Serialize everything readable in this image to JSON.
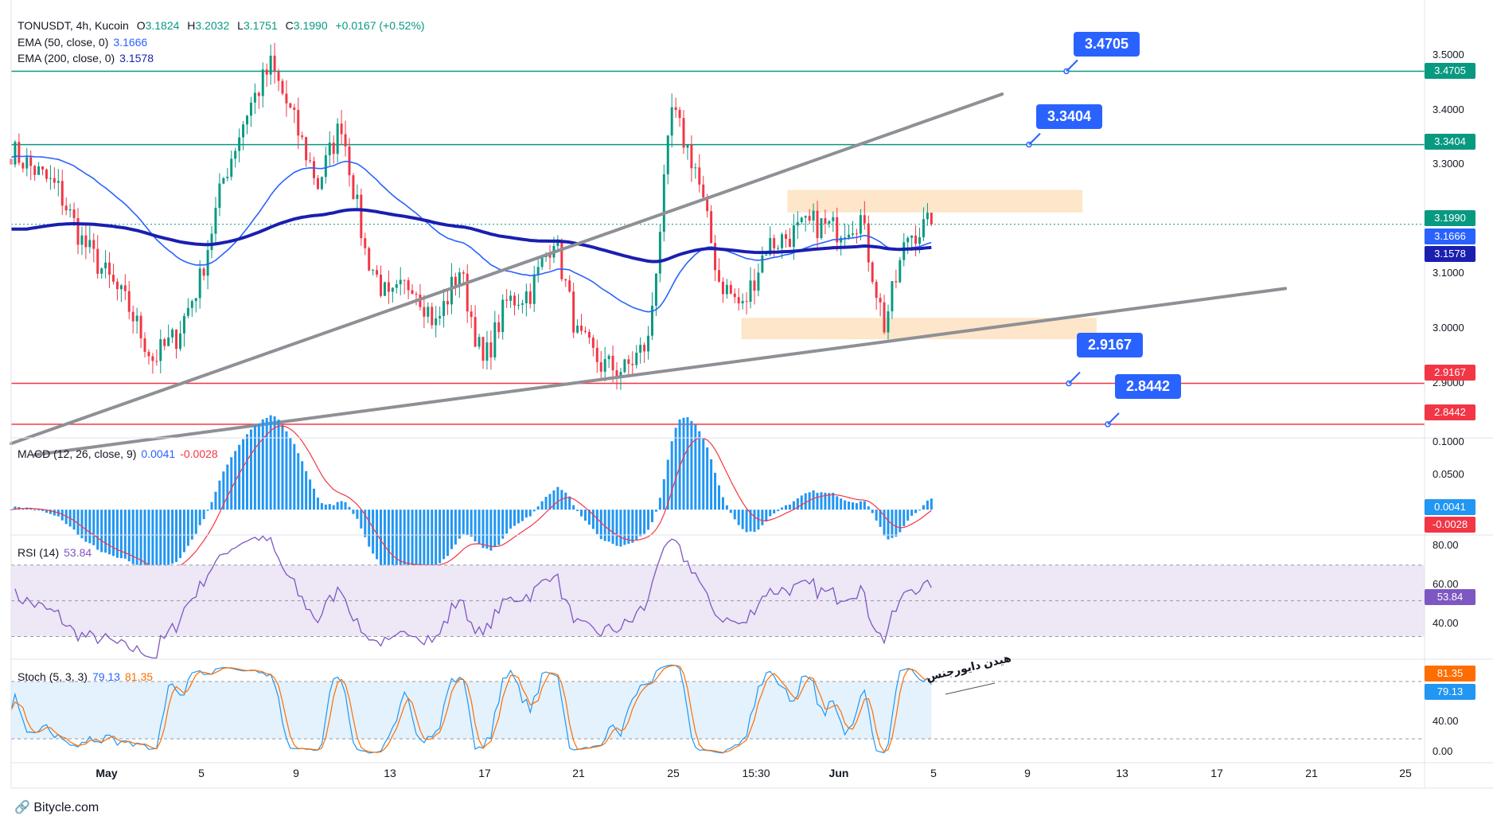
{
  "header": {
    "symbol": "TONUSDT, 4h, Kucoin",
    "o_label": "O",
    "o": "3.1824",
    "h_label": "H",
    "h": "3.2032",
    "l_label": "L",
    "l": "3.1751",
    "c_label": "C",
    "c": "3.1990",
    "change": "+0.0167 (+0.52%)"
  },
  "indicators": {
    "ema50": {
      "label": "EMA (50, close, 0)",
      "value": "3.1666"
    },
    "ema200": {
      "label": "EMA (200, close, 0)",
      "value": "3.1578"
    },
    "macd": {
      "label": "MACD (12, 26, close, 9)",
      "value1": "0.0041",
      "value2": "-0.0028"
    },
    "rsi": {
      "label": "RSI (14)",
      "value": "53.84"
    },
    "stoch": {
      "label": "Stoch (5, 3, 3)",
      "value1": "79.13",
      "value2": "81.35"
    }
  },
  "callouts": {
    "r1": "3.4705",
    "r2": "3.3404",
    "s1": "2.9167",
    "s2": "2.8442"
  },
  "price_tags": {
    "r1": "3.4705",
    "r2": "3.3404",
    "last": "3.1990",
    "ema50": "3.1666",
    "ema200": "3.1578",
    "s1": "2.9167",
    "s2": "2.8442",
    "macd1": "0.0041",
    "macd2": "-0.0028",
    "rsi": "53.84",
    "stoch2": "81.35",
    "stoch1": "79.13"
  },
  "axis": {
    "price": [
      "3.5000",
      "3.4000",
      "3.3000",
      "3.1000",
      "3.0000",
      "2.9000"
    ],
    "macd": [
      "0.1000",
      "0.0500"
    ],
    "rsi": [
      "80.00",
      "60.00",
      "40.00"
    ],
    "stoch": [
      "40.00",
      "0.00"
    ]
  },
  "x_labels": [
    "May",
    "5",
    "9",
    "13",
    "17",
    "21",
    "25",
    "15:30",
    "Jun",
    "5",
    "9",
    "13",
    "17",
    "21",
    "25"
  ],
  "annotation": "هیدن دایورجنس",
  "brand": "Bitycle.com",
  "colors": {
    "up": "#089981",
    "down": "#f23645",
    "ema50": "#2962ff",
    "ema200": "#1a1fb0",
    "trend": "#8f9095",
    "zone": "#fde3c3",
    "resistance": "#089981",
    "support": "#f23645",
    "callout": "#2962ff",
    "rsi_line": "#7e57c2",
    "rsi_fill": "#ede7f6",
    "stoch_k": "#2196f3",
    "stoch_d": "#ff6d00",
    "stoch_fill": "#e3f2fd",
    "macd_hist": "#2196f3",
    "macd_signal": "#f23645"
  },
  "chart_data": {
    "type": "candlestick",
    "title": "TONUSDT, 4h, Kucoin",
    "ylim": [
      2.82,
      3.58
    ],
    "levels": {
      "resistance": [
        3.4705,
        3.3404
      ],
      "support": [
        2.9167,
        2.8442
      ],
      "last": 3.199
    },
    "zones": [
      {
        "name": "supply",
        "top": 3.26,
        "bottom": 3.22
      },
      {
        "name": "demand",
        "top": 3.033,
        "bottom": 2.995
      }
    ],
    "trendlines": [
      {
        "name": "upper",
        "from": [
          "Apr 30",
          2.81
        ],
        "to": [
          "Jun 11",
          3.43
        ]
      },
      {
        "name": "lower",
        "from": [
          "May 1",
          2.79
        ],
        "to": [
          "Jun 23",
          3.085
        ]
      }
    ],
    "price_waypoints": [
      [
        "Apr 30",
        3.33
      ],
      [
        "May 2",
        3.26
      ],
      [
        "May 3",
        3.17
      ],
      [
        "May 5",
        3.05
      ],
      [
        "May 6",
        2.96
      ],
      [
        "May 7",
        3.0
      ],
      [
        "May 8",
        3.1
      ],
      [
        "May 9",
        3.28
      ],
      [
        "May 10",
        3.4
      ],
      [
        "May 11",
        3.48
      ],
      [
        "May 12",
        3.38
      ],
      [
        "May 13",
        3.27
      ],
      [
        "May 14",
        3.38
      ],
      [
        "May 15",
        3.15
      ],
      [
        "May 16",
        3.06
      ],
      [
        "May 17",
        3.1
      ],
      [
        "May 18",
        3.02
      ],
      [
        "May 19",
        3.12
      ],
      [
        "May 20",
        2.95
      ],
      [
        "May 21",
        3.06
      ],
      [
        "May 22",
        3.08
      ],
      [
        "May 23",
        3.18
      ],
      [
        "May 24",
        3.0
      ],
      [
        "May 25",
        2.95
      ],
      [
        "May 26",
        2.94
      ],
      [
        "May 27",
        2.99
      ],
      [
        "May 28",
        3.4
      ],
      [
        "May 29",
        3.3
      ],
      [
        "May 30",
        3.1
      ],
      [
        "May 31",
        3.05
      ],
      [
        "Jun 1",
        3.16
      ],
      [
        "Jun 2",
        3.18
      ],
      [
        "Jun 3",
        3.2
      ],
      [
        "Jun 4",
        3.19
      ],
      [
        "Jun 5",
        3.21
      ],
      [
        "Jun 6",
        3.02
      ],
      [
        "Jun 7",
        3.18
      ],
      [
        "Jun 8",
        3.199
      ]
    ],
    "ema50_last": 3.1666,
    "ema200_last": 3.1578
  }
}
